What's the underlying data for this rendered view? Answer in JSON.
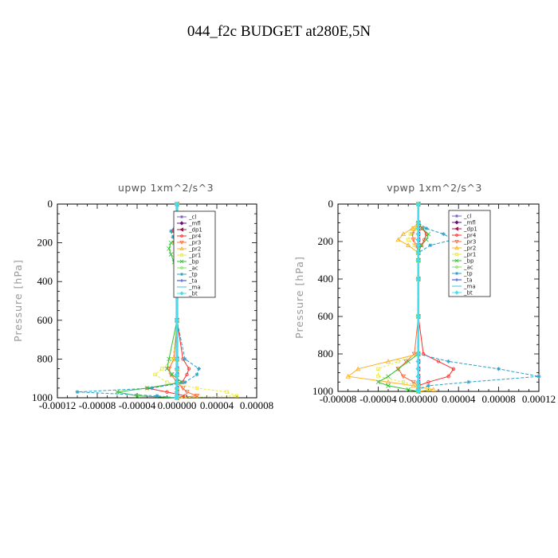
{
  "title": "044_f2c  BUDGET at280E,5N",
  "legend": [
    {
      "label": "_cl",
      "color": "#7f5fbf",
      "marker": "star"
    },
    {
      "label": "_mfl",
      "color": "#6a0f7a",
      "marker": "diamond"
    },
    {
      "label": "_dp1",
      "color": "#a0104a",
      "marker": "tri-left"
    },
    {
      "label": "_pr4",
      "color": "#ff2a2a",
      "marker": "circle"
    },
    {
      "label": "_pr3",
      "color": "#ff6a3a",
      "marker": "tri-down"
    },
    {
      "label": "_pr2",
      "color": "#ffb020",
      "marker": "tri-up"
    },
    {
      "label": "_pr1",
      "color": "#e8e83a",
      "marker": "square"
    },
    {
      "label": "_bp",
      "color": "#30c030",
      "marker": "x"
    },
    {
      "label": "_ac",
      "color": "#80e060",
      "marker": "circle"
    },
    {
      "label": "_tp",
      "color": "#2aa0c8",
      "marker": "star"
    },
    {
      "label": "_ta",
      "color": "#2040d0",
      "marker": "plus"
    },
    {
      "label": "_ma",
      "color": "#40c0e0",
      "marker": "dash"
    },
    {
      "label": "_bt",
      "color": "#40e0f0",
      "marker": "diamond"
    }
  ],
  "chart_data": [
    {
      "type": "line",
      "title": "upwp   1xm^2/s^3",
      "xlabel": "",
      "ylabel": "Pressure [hPa]",
      "xlim": [
        -0.00012,
        8e-05
      ],
      "ylim": [
        1000,
        0
      ],
      "xticks": [
        -0.00012,
        -8e-05,
        -4e-05,
        0.0,
        4e-05,
        8e-05
      ],
      "xtick_labels": [
        "-0.00012",
        "-0.00008",
        "-0.00004",
        "0.000000",
        "0.00004",
        "0.00008"
      ],
      "yticks": [
        0,
        200,
        400,
        600,
        800,
        1000
      ],
      "ytick_labels": [
        "0",
        "200",
        "400",
        "600",
        "800",
        "1000"
      ],
      "legend_position": "top-right",
      "y": [
        0,
        100,
        140,
        170,
        200,
        230,
        260,
        300,
        400,
        600,
        800,
        850,
        880,
        920,
        950,
        970,
        990,
        1000
      ],
      "series": [
        {
          "name": "_cl",
          "values": [
            0,
            0,
            0,
            0,
            0,
            0,
            0,
            0,
            0,
            0,
            0,
            0,
            0,
            0,
            0,
            0,
            0,
            0
          ]
        },
        {
          "name": "_mfl",
          "values": [
            0,
            0,
            0,
            0,
            0,
            0,
            0,
            0,
            0,
            0,
            0,
            0,
            0,
            0,
            0,
            0,
            0,
            0
          ]
        },
        {
          "name": "_dp1",
          "values": [
            0,
            0,
            0,
            0,
            0,
            0,
            0,
            0,
            0,
            0,
            0,
            0,
            0,
            0,
            0,
            0,
            0,
            0
          ]
        },
        {
          "name": "_pr4",
          "values": [
            0,
            0,
            -5e-06,
            3e-06,
            4e-06,
            2e-06,
            1e-06,
            0,
            0,
            0,
            6e-06,
            1.2e-05,
            1e-05,
            5e-06,
            -3e-05,
            -1e-05,
            8e-06,
            0
          ]
        },
        {
          "name": "_pr3",
          "values": [
            0,
            0,
            3e-06,
            -2e-06,
            -3e-06,
            0,
            0,
            0,
            0,
            0,
            -3e-06,
            -8e-06,
            -6e-06,
            0,
            6e-06,
            1e-05,
            2e-05,
            0
          ]
        },
        {
          "name": "_pr2",
          "values": [
            0,
            0,
            0,
            0,
            0,
            0,
            0,
            0,
            0,
            0,
            0,
            0,
            0,
            0,
            0,
            0,
            0,
            0
          ]
        },
        {
          "name": "_pr1",
          "values": [
            0,
            0,
            0,
            2e-06,
            0,
            0,
            0,
            0,
            0,
            0,
            -4e-06,
            -1.5e-05,
            -2.2e-05,
            -1e-05,
            2e-05,
            5e-05,
            6e-05,
            0
          ]
        },
        {
          "name": "_bp",
          "values": [
            0,
            0,
            4e-06,
            6e-06,
            -6e-06,
            -8e-06,
            -6e-06,
            -3e-06,
            0,
            0,
            -8e-06,
            -1e-05,
            -5e-06,
            5e-06,
            -3e-05,
            -6e-05,
            -4e-05,
            0
          ]
        },
        {
          "name": "_ac",
          "values": [
            0,
            0,
            0,
            0,
            0,
            0,
            0,
            0,
            0,
            0,
            0,
            0,
            0,
            0,
            0,
            0,
            0,
            0
          ]
        },
        {
          "name": "_tp",
          "values": [
            0,
            0,
            -6e-06,
            -4e-06,
            4e-06,
            8e-06,
            4e-06,
            0,
            0,
            0,
            8e-06,
            2.2e-05,
            2e-05,
            8e-06,
            -2.5e-05,
            -0.0001,
            -2e-05,
            0
          ]
        },
        {
          "name": "_ta",
          "values": [
            0,
            0,
            0,
            0,
            0,
            0,
            0,
            0,
            0,
            0,
            0,
            0,
            0,
            0,
            0,
            0,
            0,
            0
          ]
        },
        {
          "name": "_ma",
          "values": [
            0,
            0,
            0,
            0,
            0,
            0,
            0,
            0,
            0,
            0,
            0,
            0,
            0,
            0,
            0,
            0,
            0,
            0
          ]
        },
        {
          "name": "_bt",
          "values": [
            0,
            0,
            0,
            0,
            0,
            0,
            0,
            0,
            0,
            0,
            0,
            0,
            0,
            0,
            0,
            0,
            0,
            0
          ]
        }
      ]
    },
    {
      "type": "line",
      "title": "vpwp   1xm^2/s^3",
      "xlabel": "",
      "ylabel": "Pressure [hPa]",
      "xlim": [
        -8e-05,
        0.00012
      ],
      "ylim": [
        1000,
        0
      ],
      "xticks": [
        -8e-05,
        -4e-05,
        0.0,
        4e-05,
        8e-05,
        0.00012
      ],
      "xtick_labels": [
        "-0.00008",
        "-0.00004",
        "0.000000",
        "0.00004",
        "0.00008",
        "0.00012"
      ],
      "yticks": [
        0,
        200,
        400,
        600,
        800,
        1000
      ],
      "ytick_labels": [
        "0",
        "200",
        "400",
        "600",
        "800",
        "1000"
      ],
      "legend_position": "top-right",
      "y": [
        0,
        100,
        130,
        160,
        190,
        220,
        260,
        300,
        400,
        600,
        800,
        840,
        880,
        920,
        950,
        970,
        990,
        1000
      ],
      "series": [
        {
          "name": "_cl",
          "values": [
            0,
            0,
            0,
            0,
            0,
            0,
            0,
            0,
            0,
            0,
            0,
            0,
            0,
            0,
            0,
            0,
            0,
            0
          ]
        },
        {
          "name": "_mfl",
          "values": [
            0,
            0,
            0,
            0,
            0,
            0,
            0,
            0,
            0,
            0,
            0,
            0,
            0,
            0,
            0,
            0,
            0,
            0
          ]
        },
        {
          "name": "_dp1",
          "values": [
            0,
            0,
            0,
            0,
            0,
            0,
            0,
            0,
            0,
            0,
            0,
            0,
            0,
            0,
            0,
            0,
            0,
            0
          ]
        },
        {
          "name": "_pr4",
          "values": [
            0,
            0,
            4e-06,
            8e-06,
            6e-06,
            3e-06,
            0,
            0,
            0,
            0,
            5e-06,
            2e-05,
            3.5e-05,
            3e-05,
            1e-05,
            0,
            0,
            0
          ]
        },
        {
          "name": "_pr3",
          "values": [
            0,
            0,
            -3e-06,
            -6e-06,
            -5e-06,
            -2e-06,
            0,
            0,
            0,
            0,
            -4e-06,
            -1.2e-05,
            -2e-05,
            -1.5e-05,
            -5e-06,
            0,
            0,
            0
          ]
        },
        {
          "name": "_pr2",
          "values": [
            0,
            0,
            -6e-06,
            -1.5e-05,
            -2e-05,
            -1e-05,
            0,
            0,
            0,
            0,
            0,
            -3e-05,
            -6e-05,
            -7e-05,
            -3e-05,
            -5e-06,
            1.5e-05,
            0
          ]
        },
        {
          "name": "_pr1",
          "values": [
            0,
            0,
            -3e-06,
            -8e-06,
            -1e-05,
            -4e-06,
            0,
            0,
            0,
            0,
            0,
            -2e-05,
            -4e-05,
            -4e-05,
            -1.5e-05,
            0,
            1e-05,
            0
          ]
        },
        {
          "name": "_bp",
          "values": [
            0,
            0,
            4e-06,
            1e-05,
            8e-06,
            3e-06,
            0,
            0,
            0,
            0,
            0,
            -1e-05,
            -2e-05,
            -3e-05,
            -4e-05,
            -3e-05,
            -1e-05,
            0
          ]
        },
        {
          "name": "_ac",
          "values": [
            0,
            0,
            0,
            0,
            0,
            0,
            0,
            0,
            0,
            0,
            0,
            0,
            0,
            0,
            0,
            0,
            0,
            0
          ]
        },
        {
          "name": "_tp",
          "values": [
            0,
            0,
            8e-06,
            2.5e-05,
            3.5e-05,
            1.2e-05,
            0,
            0,
            0,
            0,
            0,
            3e-05,
            8e-05,
            0.00012,
            5e-05,
            1e-05,
            0,
            0
          ]
        },
        {
          "name": "_ta",
          "values": [
            0,
            0,
            0,
            0,
            0,
            0,
            0,
            0,
            0,
            0,
            0,
            0,
            0,
            0,
            0,
            0,
            0,
            0
          ]
        },
        {
          "name": "_ma",
          "values": [
            0,
            0,
            0,
            0,
            0,
            0,
            0,
            0,
            0,
            0,
            0,
            0,
            0,
            0,
            0,
            0,
            0,
            0
          ]
        },
        {
          "name": "_bt",
          "values": [
            0,
            0,
            0,
            0,
            0,
            0,
            0,
            0,
            0,
            0,
            0,
            0,
            0,
            0,
            0,
            0,
            0,
            0
          ]
        }
      ]
    }
  ]
}
